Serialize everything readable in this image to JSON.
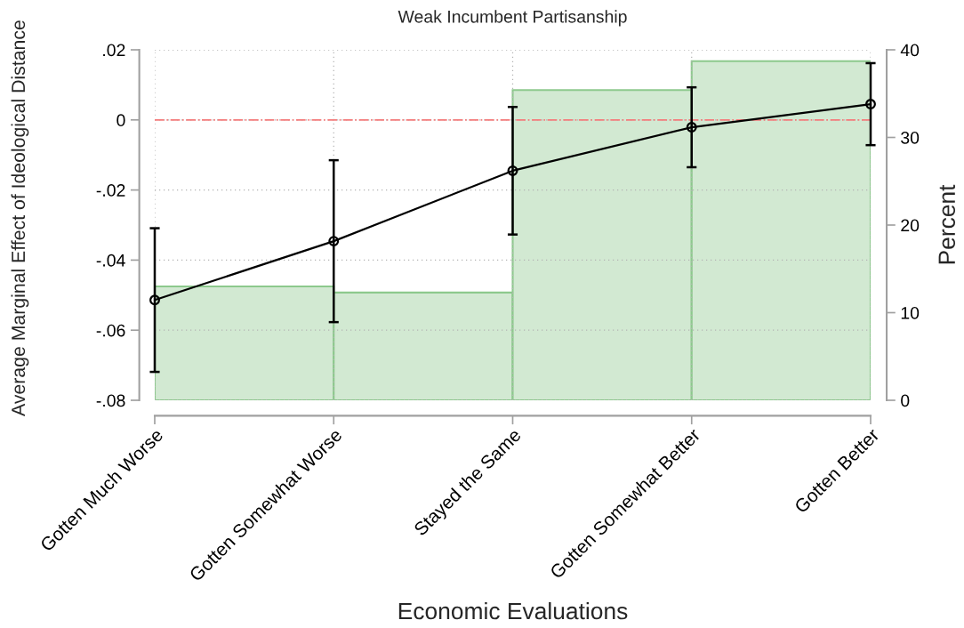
{
  "chart_data": {
    "type": "line",
    "title": "Weak Incumbent Partisanship",
    "xlabel": "Economic Evaluations",
    "ylabel": "Average Marginal Effect of Ideological Distance",
    "y2label": "Percent",
    "categories": [
      "Gotten Much Worse",
      "Gotten Somewhat Worse",
      "Stayed the Same",
      "Gotten Somewhat Better",
      "Gotten Better"
    ],
    "ylim": [
      -0.08,
      0.02
    ],
    "yticks": [
      {
        "value": -0.08,
        "label": "-.08"
      },
      {
        "value": -0.06,
        "label": "-.06"
      },
      {
        "value": -0.04,
        "label": "-.04"
      },
      {
        "value": -0.02,
        "label": "-.02"
      },
      0,
      {
        "value": 0.02,
        "label": ".02"
      }
    ],
    "y2lim": [
      0,
      40
    ],
    "y2ticks": [
      0,
      10,
      20,
      30,
      40
    ],
    "grid": true,
    "marker": "circle",
    "series": [
      {
        "type": "bar",
        "axis": "y2",
        "color": "#d2e9d2",
        "values": [
          13.0,
          12.3,
          35.4,
          38.7,
          null
        ]
      },
      {
        "color": "#000000",
        "values": [
          -0.0514,
          -0.0346,
          -0.0145,
          -0.0021,
          0.0045
        ],
        "errors": [
          0.0205,
          0.0231,
          0.0182,
          0.0114,
          0.0117
        ]
      }
    ],
    "ref_lines": [
      {
        "axis": "y",
        "value": 0,
        "color": "#f47c7c",
        "line_style": "dashdot"
      }
    ]
  }
}
